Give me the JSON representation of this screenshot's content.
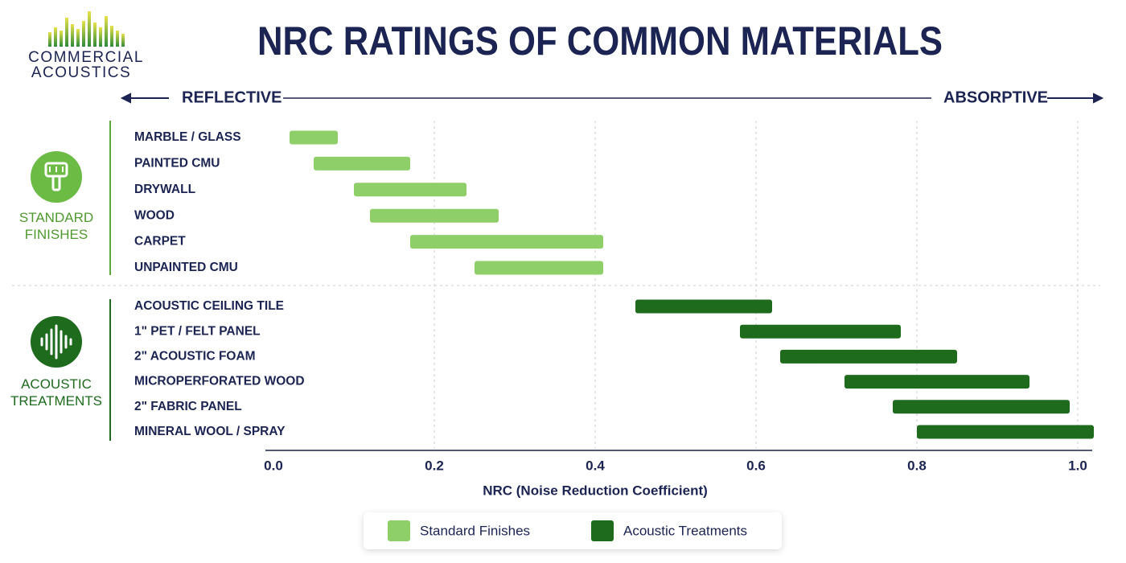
{
  "logo": {
    "lines": [
      "COMMERCIAL",
      "ACOUSTICS"
    ]
  },
  "chart_data": {
    "type": "range_bar",
    "title": "NRC RATINGS OF COMMON MATERIALS",
    "scale_left": "REFLECTIVE",
    "scale_right": "ABSORPTIVE",
    "x_label": "NRC (Noise Reduction Coefficient)",
    "xlim": [
      0,
      1.03
    ],
    "xticks": [
      {
        "value": 0,
        "label": "0.0"
      },
      0.2,
      0.4,
      0.6,
      0.8,
      {
        "value": 1,
        "label": "1.0"
      }
    ],
    "grid": true,
    "series": [
      {
        "name": "Standard Finishes",
        "group_label": "STANDARD FINISHES",
        "color": "#8fcf6a",
        "categories": [
          "MARBLE / GLASS",
          "PAINTED CMU",
          "DRYWALL",
          "WOOD",
          "CARPET",
          "UNPAINTED CMU"
        ],
        "values": [
          [
            0.02,
            0.08
          ],
          [
            0.05,
            0.17
          ],
          [
            0.1,
            0.24
          ],
          [
            0.12,
            0.28
          ],
          [
            0.17,
            0.41
          ],
          [
            0.25,
            0.41
          ]
        ]
      },
      {
        "name": "Acoustic Treatments",
        "group_label": "ACOUSTIC TREATMENTS",
        "color": "#1e6b1e",
        "categories": [
          "ACOUSTIC CEILING TILE",
          "1\" PET / FELT PANEL",
          "2\" ACOUSTIC FOAM",
          "MICROPERFORATED WOOD",
          "2\" FABRIC PANEL",
          "MINERAL WOOL / SPRAY"
        ],
        "values": [
          [
            0.45,
            0.62
          ],
          [
            0.58,
            0.78
          ],
          [
            0.63,
            0.85
          ],
          [
            0.71,
            0.94
          ],
          [
            0.77,
            0.99
          ],
          [
            0.8,
            1.02
          ]
        ]
      }
    ]
  }
}
